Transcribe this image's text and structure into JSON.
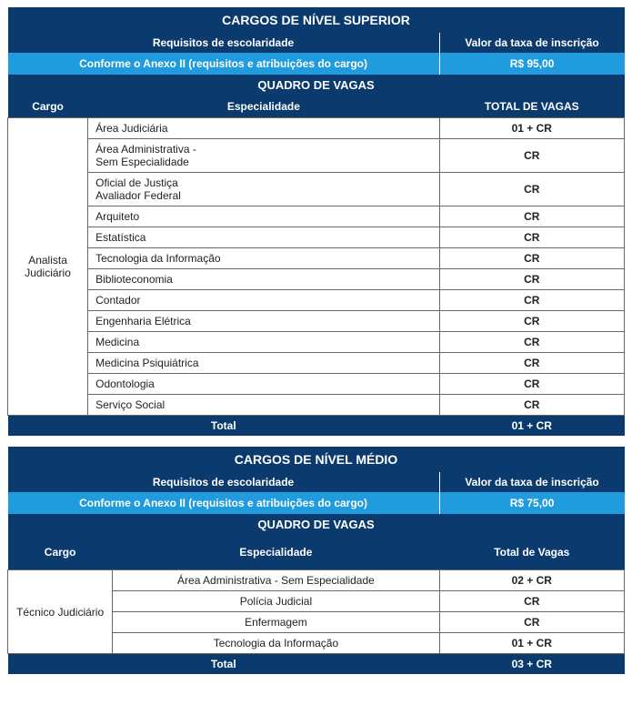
{
  "colors": {
    "darkBlue": "#0b3a6f",
    "accentBlue": "#1f9bde",
    "border": "#666666",
    "text": "#222222",
    "white": "#ffffff"
  },
  "section1": {
    "title": "CARGOS DE NÍVEL SUPERIOR",
    "subheaders": {
      "req": "Requisitos de escolaridade",
      "fee": "Valor da taxa de inscrição"
    },
    "accentRow": {
      "req": "Conforme o Anexo II (requisitos e atribuições do cargo)",
      "fee": "R$ 95,00"
    },
    "quadro": "QUADRO DE VAGAS",
    "cols": {
      "cargo": "Cargo",
      "esp": "Especialidade",
      "total": "TOTAL DE VAGAS"
    },
    "cargo": "Analista Judiciário",
    "rows": [
      {
        "esp": "Área Judiciária",
        "vagas": "01 + CR"
      },
      {
        "esp": "Área Administrativa - Sem Especialidade",
        "vagas": "CR"
      },
      {
        "esp": "Oficial de Justiça Avaliador Federal",
        "vagas": "CR"
      },
      {
        "esp": "Arquiteto",
        "vagas": "CR"
      },
      {
        "esp": "Estatística",
        "vagas": "CR"
      },
      {
        "esp": "Tecnologia da Informação",
        "vagas": "CR"
      },
      {
        "esp": "Biblioteconomia",
        "vagas": "CR"
      },
      {
        "esp": "Contador",
        "vagas": "CR"
      },
      {
        "esp": "Engenharia Elétrica",
        "vagas": "CR"
      },
      {
        "esp": "Medicina",
        "vagas": "CR"
      },
      {
        "esp": "Medicina Psiquiátrica",
        "vagas": "CR"
      },
      {
        "esp": "Odontologia",
        "vagas": "CR"
      },
      {
        "esp": "Serviço Social",
        "vagas": "CR"
      }
    ],
    "total": {
      "label": "Total",
      "value": "01 + CR"
    }
  },
  "section2": {
    "title": "CARGOS DE NÍVEL MÉDIO",
    "subheaders": {
      "req": "Requisitos de escolaridade",
      "fee": "Valor da taxa de inscrição"
    },
    "accentRow": {
      "req": "Conforme o Anexo II (requisitos e atribuições do cargo)",
      "fee": "R$ 75,00"
    },
    "quadro": "QUADRO DE VAGAS",
    "cols": {
      "cargo": "Cargo",
      "esp": "Especialidade",
      "total": "Total de Vagas"
    },
    "cargo": "Técnico Judiciário",
    "rows": [
      {
        "esp": "Área Administrativa - Sem Especialidade",
        "vagas": "02 + CR"
      },
      {
        "esp": "Polícia Judicial",
        "vagas": "CR"
      },
      {
        "esp": "Enfermagem",
        "vagas": "CR"
      },
      {
        "esp": "Tecnologia da Informação",
        "vagas": "01 + CR"
      }
    ],
    "total": {
      "label": "Total",
      "value": "03 + CR"
    }
  }
}
